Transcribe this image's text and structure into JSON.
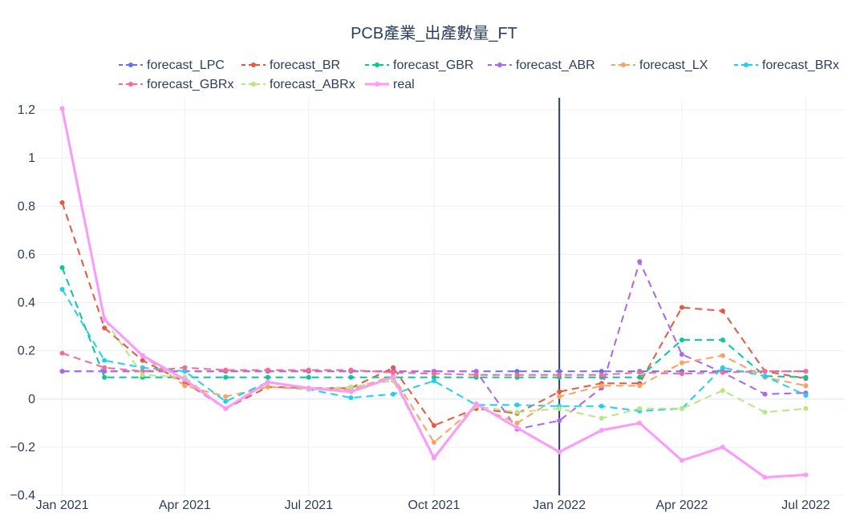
{
  "chart_data": {
    "type": "line",
    "title": "PCB產業_出產數量_FT",
    "xlabel": "",
    "ylabel": "",
    "x": [
      "2021-01",
      "2021-02",
      "2021-03",
      "2021-04",
      "2021-05",
      "2021-06",
      "2021-07",
      "2021-08",
      "2021-09",
      "2021-10",
      "2021-11",
      "2021-12",
      "2022-01",
      "2022-02",
      "2022-03",
      "2022-04",
      "2022-05",
      "2022-06",
      "2022-07"
    ],
    "x_ticks": [
      "2021-01",
      "2021-04",
      "2021-07",
      "2021-10",
      "2022-01",
      "2022-04",
      "2022-07"
    ],
    "x_tick_labels": [
      "Jan 2021",
      "Apr 2021",
      "Jul 2021",
      "Oct 2021",
      "Jan 2022",
      "Apr 2022",
      "Jul 2022"
    ],
    "xlim": [
      "2020-12-14",
      "2022-07-29"
    ],
    "ylim": [
      -0.4,
      1.25
    ],
    "y_ticks": [
      -0.4,
      -0.2,
      0,
      0.2,
      0.4,
      0.6,
      0.8,
      1,
      1.2
    ],
    "y_tick_labels": [
      "−0.4",
      "−0.2",
      "0",
      "0.2",
      "0.4",
      "0.6",
      "0.8",
      "1",
      "1.2"
    ],
    "grid": true,
    "legend_position": "top",
    "vertical_line_x": "2022-01",
    "vertical_line_color": "#2a3f5f",
    "series": [
      {
        "name": "forecast_LPC",
        "color": "#636efa",
        "dash": "dash",
        "values": [
          0.115,
          0.115,
          0.115,
          0.115,
          0.115,
          0.115,
          0.115,
          0.115,
          0.115,
          0.115,
          0.115,
          0.115,
          0.115,
          0.115,
          0.115,
          0.115,
          0.115,
          0.115,
          0.115
        ]
      },
      {
        "name": "forecast_BR",
        "color": "#EF553B",
        "dash": "dash",
        "values": [
          0.815,
          0.295,
          0.16,
          0.07,
          -0.04,
          0.05,
          0.045,
          0.045,
          0.13,
          -0.11,
          -0.04,
          -0.06,
          0.03,
          0.065,
          0.065,
          0.38,
          0.365,
          0.115,
          0.085
        ]
      },
      {
        "name": "forecast_GBR",
        "color": "#00cc96",
        "dash": "dash",
        "values": [
          0.545,
          0.09,
          0.09,
          0.09,
          0.09,
          0.09,
          0.09,
          0.09,
          0.09,
          0.09,
          0.09,
          0.09,
          0.09,
          0.09,
          0.09,
          0.245,
          0.245,
          0.095,
          0.09
        ]
      },
      {
        "name": "forecast_ABR",
        "color": "#ab63fa",
        "dash": "dash",
        "values": [
          0.115,
          0.115,
          0.115,
          0.115,
          0.115,
          0.115,
          0.115,
          0.115,
          0.115,
          0.115,
          0.115,
          -0.125,
          -0.09,
          0.045,
          0.57,
          0.185,
          0.11,
          0.02,
          0.025
        ]
      },
      {
        "name": "forecast_LX",
        "color": "#FFA15A",
        "dash": "dash",
        "values": [
          1.205,
          0.33,
          0.18,
          0.055,
          0.01,
          0.05,
          0.04,
          0.04,
          0.095,
          -0.18,
          -0.03,
          -0.1,
          0.01,
          0.055,
          0.055,
          0.15,
          0.18,
          0.09,
          0.055
        ]
      },
      {
        "name": "forecast_BRx",
        "color": "#19d3f3",
        "dash": "dash",
        "values": [
          0.455,
          0.16,
          0.13,
          0.115,
          -0.01,
          0.07,
          0.04,
          0.005,
          0.02,
          0.075,
          -0.025,
          -0.025,
          -0.03,
          -0.03,
          -0.05,
          -0.04,
          0.13,
          0.095,
          0.015
        ]
      },
      {
        "name": "forecast_GBRx",
        "color": "#FF6692",
        "dash": "dash",
        "values": [
          0.19,
          0.13,
          0.115,
          0.13,
          0.12,
          0.12,
          0.12,
          0.12,
          0.11,
          0.105,
          0.1,
          0.1,
          0.1,
          0.1,
          0.11,
          0.105,
          0.11,
          0.115,
          0.115
        ]
      },
      {
        "name": "forecast_ABRx",
        "color": "#B6E880",
        "dash": "dash",
        "values": [
          1.205,
          0.33,
          0.1,
          0.09,
          -0.04,
          0.07,
          0.04,
          0.05,
          0.075,
          -0.24,
          -0.03,
          -0.055,
          -0.04,
          -0.08,
          -0.04,
          -0.04,
          0.035,
          -0.055,
          -0.04
        ]
      },
      {
        "name": "real",
        "color": "#FF97FF",
        "dash": "solid",
        "values": [
          1.205,
          0.33,
          0.18,
          0.08,
          -0.04,
          0.07,
          0.045,
          0.03,
          0.09,
          -0.245,
          -0.02,
          -0.12,
          -0.22,
          -0.13,
          -0.1,
          -0.255,
          -0.2,
          -0.325,
          -0.315
        ]
      }
    ]
  }
}
